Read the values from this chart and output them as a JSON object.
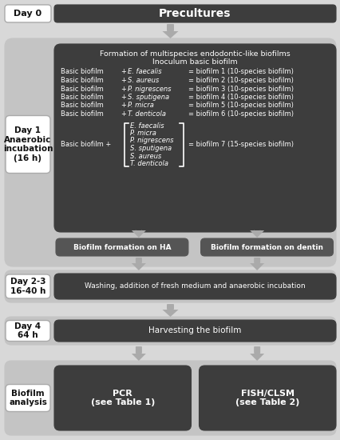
{
  "bg_color": "#d8d8d8",
  "dark_box_color": "#3d3d3d",
  "medium_box_color": "#555555",
  "white_box_color": "#ffffff",
  "text_white": "#ffffff",
  "text_black": "#111111",
  "arrow_color": "#aaaaaa",
  "title_precultures": "Precultures",
  "day0_label": "Day 0",
  "day1_label": "Day 1\nAnaerobic\nincubation\n(16 h)",
  "day23_label": "Day 2-3\n16-40 h",
  "day4_label": "Day 4\n64 h",
  "biofilm_analysis_label": "Biofilm\nanalysis",
  "formation_title1": "Formation of multispecies endodontic-like biofilms",
  "formation_title2": "Inoculum basic biofilm",
  "biofilm_rows": [
    [
      "Basic biofilm",
      "+",
      "E. faecalis",
      "= biofilm 1 (10-species biofilm)"
    ],
    [
      "Basic biofilm",
      "+",
      "S. aureus",
      "= biofilm 2 (10-species biofilm)"
    ],
    [
      "Basic biofilm",
      "+",
      "P. nigrescens",
      "= biofilm 3 (10-species biofilm)"
    ],
    [
      "Basic biofilm",
      "+",
      "S. sputigena",
      "= biofilm 4 (10-species biofilm)"
    ],
    [
      "Basic biofilm",
      "+",
      "P. micra",
      "= biofilm 5 (10-species biofilm)"
    ],
    [
      "Basic biofilm",
      "+",
      "T. denticola",
      "= biofilm 6 (10-species biofilm)"
    ]
  ],
  "bracket_species": [
    "E. faecalis",
    "P. micra",
    "P. nigrescens",
    "S. sputigena",
    "S. aureus",
    "T. denticola"
  ],
  "biofilm7_text": "= biofilm 7 (15-species biofilm)",
  "ha_text": "Biofilm formation on HA",
  "dentin_text": "Biofilm formation on dentin",
  "washing_text": "Washing, addition of fresh medium and anaerobic incubation",
  "harvesting_text": "Harvesting the biofilm",
  "pcr_text": "PCR\n(see Table 1)",
  "fish_text": "FISH/CLSM\n(see Table 2)"
}
